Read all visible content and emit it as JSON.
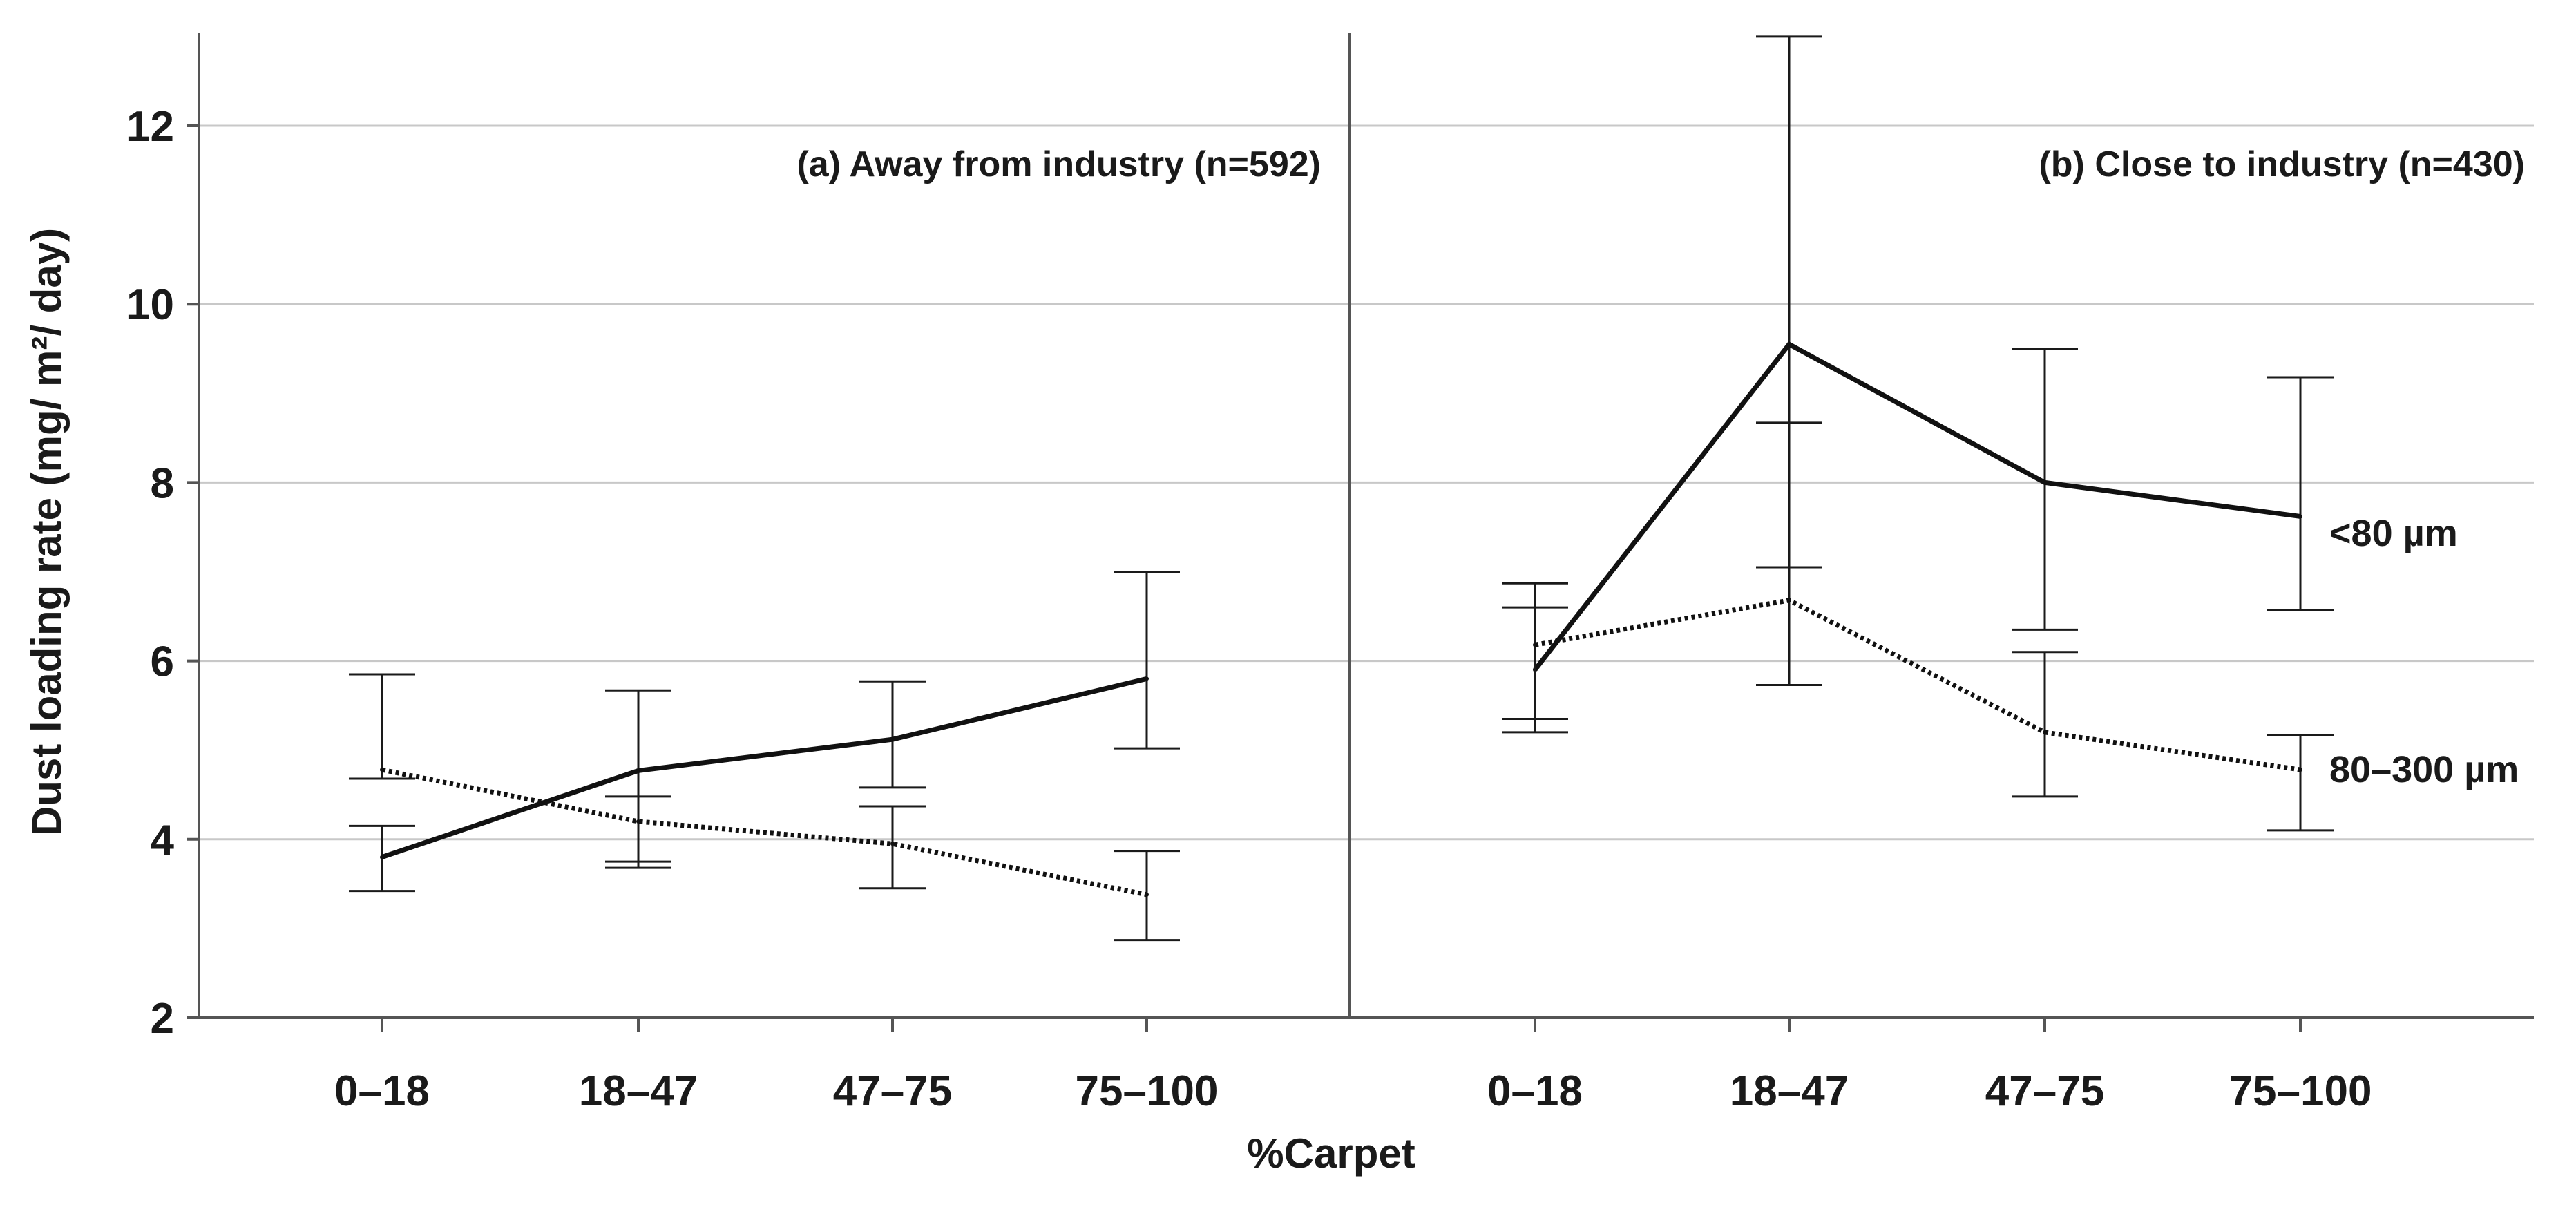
{
  "chart_data": {
    "type": "line",
    "title": "",
    "xlabel": "%Carpet",
    "ylabel": "Dust loading rate (mg/ m²/ day)",
    "ylim": [
      2,
      13
    ],
    "yticks": [
      2,
      4,
      6,
      8,
      10,
      12
    ],
    "grid": true,
    "categories": [
      "0–18",
      "18–47",
      "47–75",
      "75–100"
    ],
    "panels": [
      {
        "label": "(a) Away from industry (n=592)",
        "series": [
          {
            "name": "<80 µm",
            "style": "solid",
            "values": [
              3.8,
              4.77,
              5.12,
              5.8
            ],
            "lower": [
              3.42,
              3.75,
              4.58,
              5.02
            ],
            "upper": [
              4.15,
              5.67,
              5.77,
              7.0
            ]
          },
          {
            "name": "80–300 µm",
            "style": "dotted",
            "values": [
              4.78,
              4.2,
              3.95,
              3.38
            ],
            "lower": [
              4.68,
              3.68,
              3.45,
              2.87
            ],
            "upper": [
              5.85,
              4.48,
              4.37,
              3.87
            ]
          }
        ]
      },
      {
        "label": "(b) Close to industry (n=430)",
        "series": [
          {
            "name": "<80 µm",
            "style": "solid",
            "values": [
              5.9,
              9.55,
              8.0,
              7.62
            ],
            "lower": [
              5.2,
              7.05,
              6.35,
              6.57
            ],
            "upper": [
              6.6,
              13.0,
              9.5,
              9.18
            ]
          },
          {
            "name": "80–300 µm",
            "style": "dotted",
            "values": [
              6.18,
              6.68,
              5.2,
              4.78
            ],
            "lower": [
              5.35,
              5.73,
              4.48,
              4.1
            ],
            "upper": [
              6.87,
              8.67,
              6.1,
              5.17
            ]
          }
        ]
      }
    ],
    "line_labels": [
      "<80 µm",
      "80–300 µm"
    ]
  }
}
